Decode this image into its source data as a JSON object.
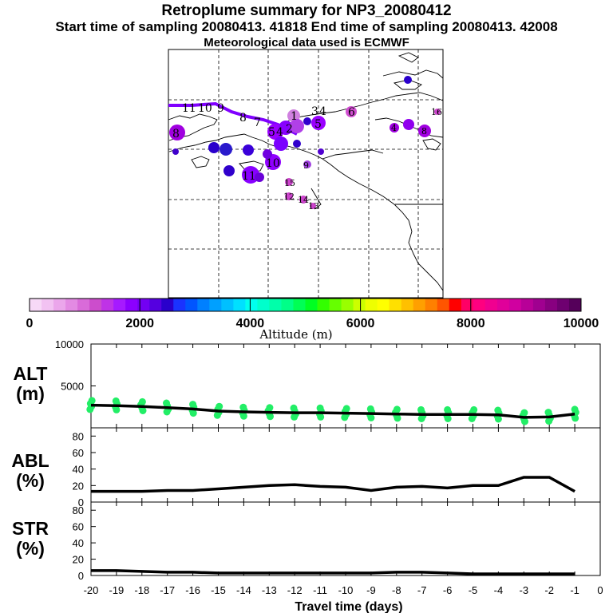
{
  "header": {
    "title": "Retroplume summary for NP3_20080412",
    "subtitle": "Start time of sampling 20080413. 41818     End time of sampling 20080413. 42008",
    "met": "Meteorological data used is ECMWF"
  },
  "colorbar": {
    "label": "Altitude (m)",
    "ticks": [
      "0",
      "2000",
      "4000",
      "6000",
      "8000",
      "10000"
    ],
    "colors": [
      "#f7d9f7",
      "#f2c2f2",
      "#eba6eb",
      "#e38ae3",
      "#d96bd9",
      "#cc4dcc",
      "#bf33e6",
      "#a61aff",
      "#8c00ff",
      "#7300f2",
      "#5500e0",
      "#2a00cc",
      "#1a33ff",
      "#0055ff",
      "#0080ff",
      "#00a0ff",
      "#00c0ff",
      "#00e0ff",
      "#00ffee",
      "#00ffcc",
      "#00ffaa",
      "#00ff88",
      "#00ff55",
      "#00ff22",
      "#33ff00",
      "#66ff00",
      "#99ff00",
      "#ccff00",
      "#eeff00",
      "#ffff00",
      "#ffe000",
      "#ffc000",
      "#ffa000",
      "#ff8000",
      "#ff5500",
      "#ff0000",
      "#ff0066",
      "#ff0080",
      "#f00090",
      "#e0009a",
      "#d000a0",
      "#b80098",
      "#a00090",
      "#880080",
      "#6e0070",
      "#55005a"
    ]
  },
  "map": {
    "plume_labels": [
      {
        "text": "1",
        "color": "#6a00d9"
      },
      {
        "text": "2",
        "color": "#6a00d9"
      },
      {
        "text": "3",
        "color": "#6a00d9"
      },
      {
        "text": "4",
        "color": "#cc44cc"
      },
      {
        "text": "5",
        "color": "#9a00ff"
      },
      {
        "text": "6",
        "color": "#d04fd0"
      },
      {
        "text": "7",
        "color": "#9a00ff"
      },
      {
        "text": "8",
        "color": "#a000f0"
      },
      {
        "text": "9",
        "color": "#8a00ff"
      },
      {
        "text": "10",
        "color": "#9000ff"
      },
      {
        "text": "11",
        "color": "#8800ff"
      },
      {
        "text": "12",
        "color": "#cc44cc"
      },
      {
        "text": "13",
        "color": "#cc44cc"
      },
      {
        "text": "14",
        "color": "#cc44cc"
      },
      {
        "text": "15",
        "color": "#cc44cc"
      },
      {
        "text": "16",
        "color": "#cc44cc"
      }
    ]
  },
  "panels": {
    "alt_label_top": "ALT",
    "alt_label_bottom": "(m)",
    "abl_label_top": "ABL",
    "abl_label_bottom": "(%)",
    "str_label_top": "STR",
    "str_label_bottom": "(%)",
    "alt_ticks": [
      "10000",
      "5000"
    ],
    "pct_ticks": [
      "80",
      "60",
      "40",
      "20",
      "0"
    ]
  },
  "xaxis": {
    "label": "Travel time (days)",
    "ticks": [
      "-20",
      "-19",
      "-18",
      "-17",
      "-16",
      "-15",
      "-14",
      "-13",
      "-12",
      "-11",
      "-10",
      "-9",
      "-8",
      "-7",
      "-6",
      "-5",
      "-4",
      "-3",
      "-2",
      "-1",
      "0"
    ]
  },
  "chart_data": [
    {
      "type": "line",
      "name": "ALT",
      "ylabel": "ALT (m)",
      "xlabel": "Travel time (days)",
      "x": [
        -20,
        -19,
        -18,
        -17,
        -16,
        -15,
        -14,
        -13,
        -12,
        -11,
        -10,
        -9,
        -8,
        -7,
        -6,
        -5,
        -4,
        -3,
        -2,
        -1
      ],
      "values": [
        2700,
        2650,
        2550,
        2400,
        2250,
        2000,
        1900,
        1850,
        1800,
        1800,
        1750,
        1700,
        1650,
        1600,
        1600,
        1600,
        1550,
        1250,
        1300,
        1650
      ],
      "scatter_color": "#22ee66",
      "xlim": [
        -20,
        0
      ],
      "ylim": [
        0,
        10000
      ]
    },
    {
      "type": "line",
      "name": "ABL",
      "ylabel": "ABL (%)",
      "xlabel": "Travel time (days)",
      "x": [
        -20,
        -19,
        -18,
        -17,
        -16,
        -15,
        -14,
        -13,
        -12,
        -11,
        -10,
        -9,
        -8,
        -7,
        -6,
        -5,
        -4,
        -3,
        -2,
        -1
      ],
      "values": [
        13,
        13,
        13,
        14,
        14,
        16,
        18,
        20,
        21,
        19,
        18,
        14,
        18,
        19,
        17,
        20,
        20,
        30,
        30,
        13
      ],
      "xlim": [
        -20,
        0
      ],
      "ylim": [
        0,
        90
      ]
    },
    {
      "type": "line",
      "name": "STR",
      "ylabel": "STR (%)",
      "xlabel": "Travel time (days)",
      "x": [
        -20,
        -19,
        -18,
        -17,
        -16,
        -15,
        -14,
        -13,
        -12,
        -11,
        -10,
        -9,
        -8,
        -7,
        -6,
        -5,
        -4,
        -3,
        -2,
        -1
      ],
      "values": [
        6,
        6,
        5,
        4,
        4,
        3,
        3,
        3,
        3,
        3,
        3,
        3,
        4,
        4,
        3,
        2,
        2,
        2,
        2,
        2
      ],
      "xlim": [
        -20,
        0
      ],
      "ylim": [
        0,
        90
      ]
    }
  ]
}
